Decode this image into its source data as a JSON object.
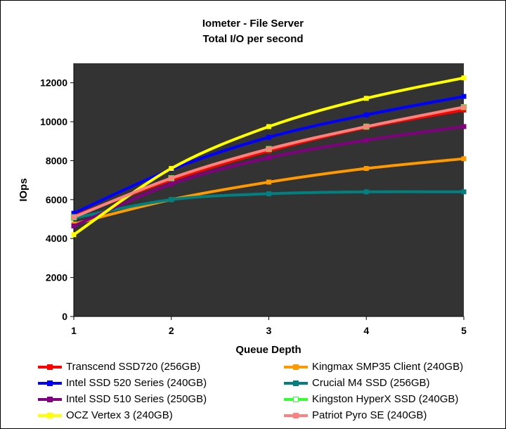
{
  "chart_data": {
    "type": "line",
    "title": "Iometer - File Server",
    "subtitle": "Total I/O per second",
    "xlabel": "Queue Depth",
    "ylabel": "IOps",
    "x": [
      1,
      2,
      3,
      4,
      5
    ],
    "xlim": [
      1,
      5
    ],
    "ylim": [
      0,
      13000
    ],
    "yticks": [
      0,
      2000,
      4000,
      6000,
      8000,
      10000,
      12000
    ],
    "grid": false,
    "plot_background": "#333333",
    "legend_position": "bottom",
    "series": [
      {
        "name": "Transcend SSD720 (256GB)",
        "color": "#ff0000",
        "marker": "square",
        "values": [
          5150,
          7000,
          8500,
          9700,
          10600
        ]
      },
      {
        "name": "Kingmax SMP35 Client (240GB)",
        "color": "#ff9900",
        "marker": "square",
        "values": [
          4750,
          6000,
          6900,
          7600,
          8100
        ]
      },
      {
        "name": "Intel SSD 520 Series (240GB)",
        "color": "#0000ff",
        "marker": "square",
        "values": [
          5300,
          7550,
          9200,
          10350,
          11300
        ]
      },
      {
        "name": "Crucial M4 SSD (256GB)",
        "color": "#008080",
        "marker": "square",
        "values": [
          5050,
          6000,
          6300,
          6400,
          6400
        ]
      },
      {
        "name": "Intel SSD 510 Series (250GB)",
        "color": "#800080",
        "marker": "square",
        "values": [
          4650,
          6800,
          8150,
          9050,
          9750
        ]
      },
      {
        "name": "Kingston HyperX SSD (240GB)",
        "color": "#33ff33",
        "marker": "square-hollow",
        "values": [
          5100,
          7100,
          8600,
          9750,
          10750
        ]
      },
      {
        "name": "OCZ Vertex 3 (240GB)",
        "color": "#ffff00",
        "marker": "square",
        "values": [
          4200,
          7600,
          9750,
          11200,
          12250
        ]
      },
      {
        "name": "Patriot Pyro SE (240GB)",
        "color": "#ff8080",
        "marker": "square",
        "values": [
          5100,
          7100,
          8600,
          9750,
          10750
        ]
      }
    ]
  }
}
